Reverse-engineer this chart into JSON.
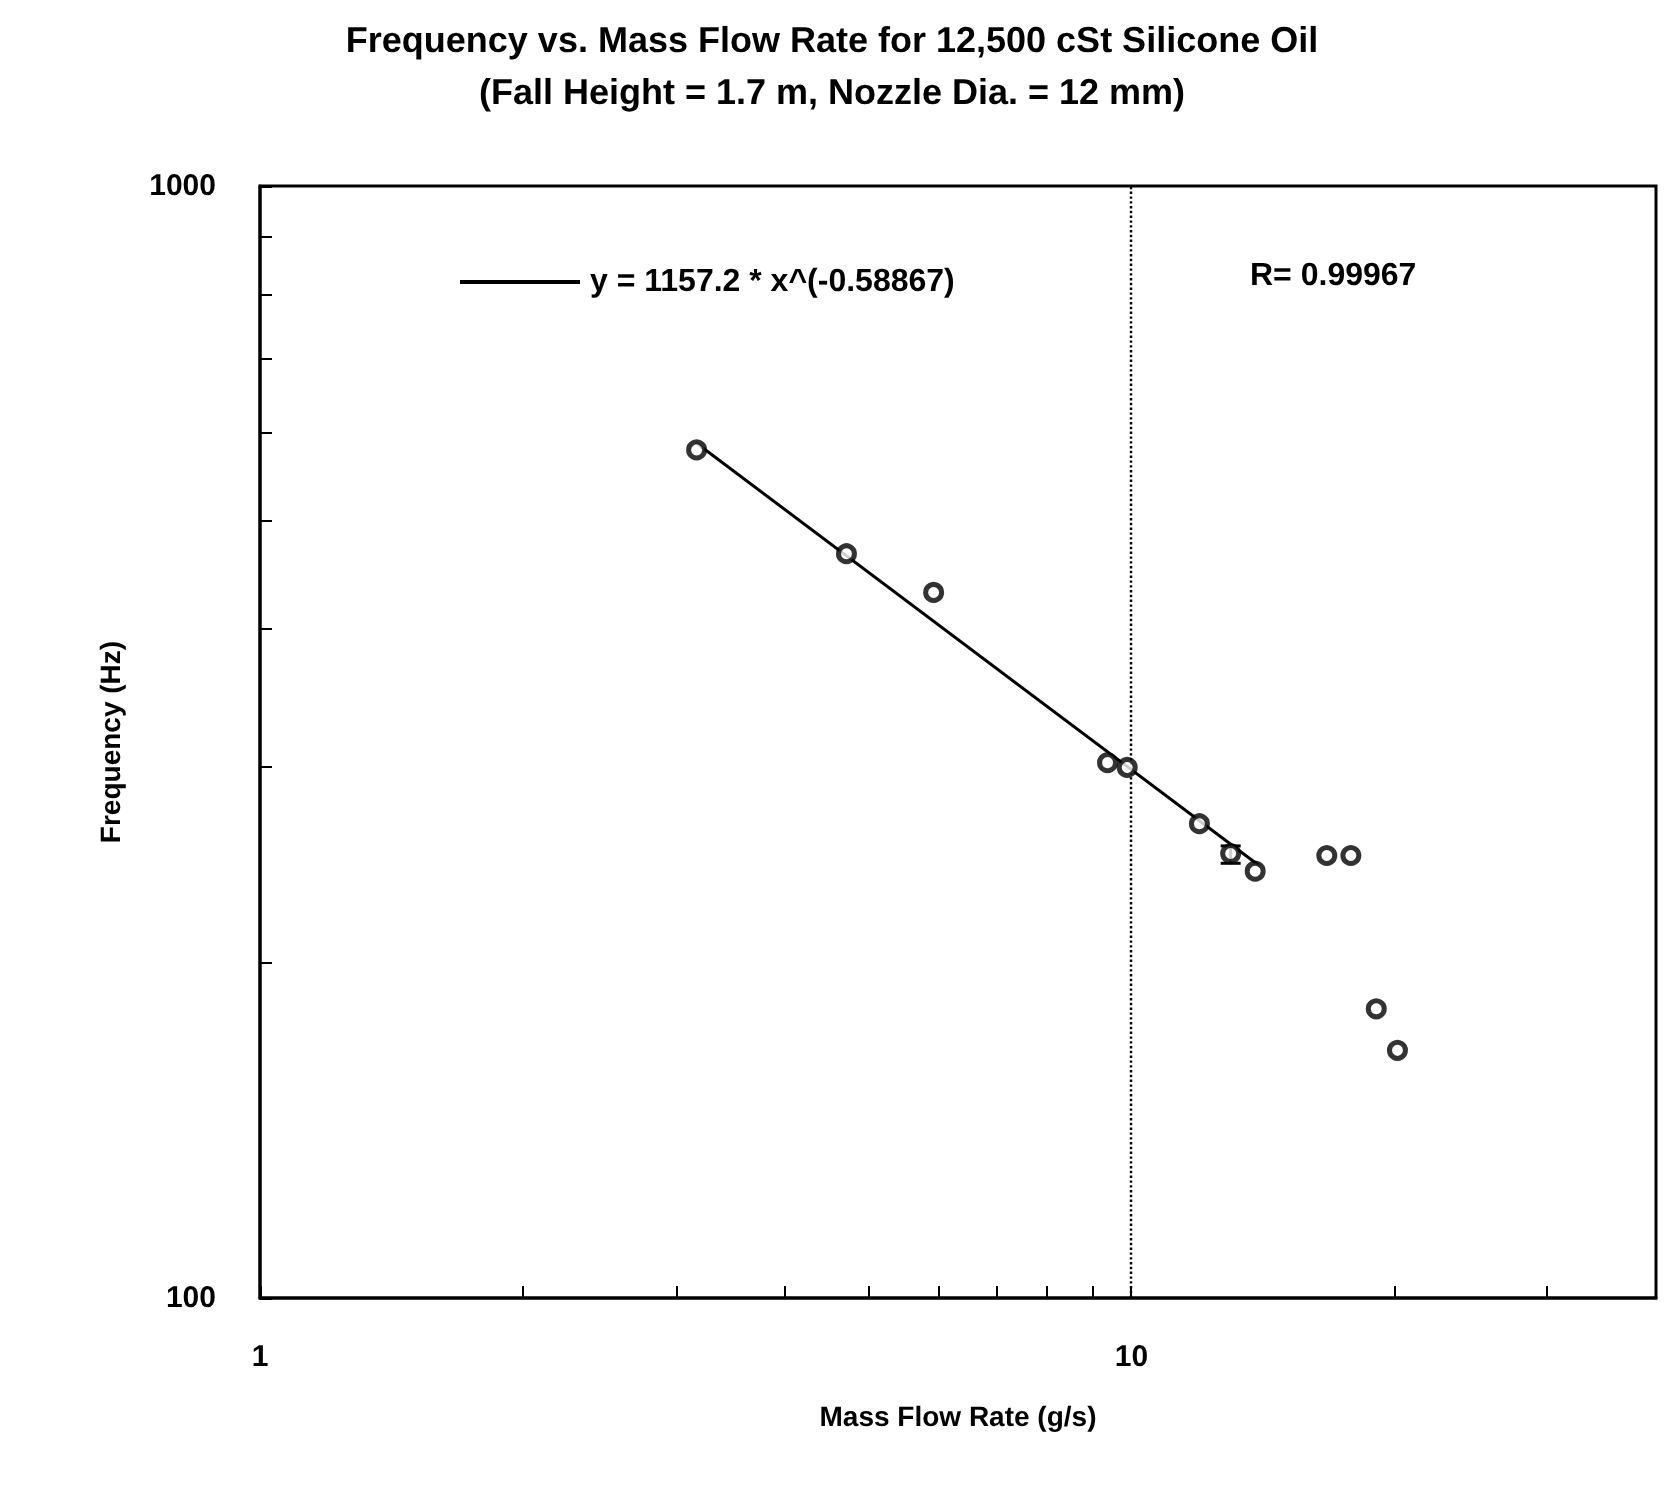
{
  "chart_data": {
    "type": "scatter",
    "title": "Frequency vs. Mass Flow Rate for 12,500 cSt Silicone Oil",
    "subtitle": "(Fall Height = 1.7 m, Nozzle Dia. = 12 mm)",
    "xlabel": "Mass Flow Rate (g/s)",
    "ylabel": "Frequency (Hz)",
    "log": "xy",
    "grid": false,
    "legend": "top",
    "marker": "circle",
    "xlim": [
      1,
      40
    ],
    "ylim": [
      100,
      1000
    ],
    "xticks": [
      1,
      {
        "value": 2,
        "label": null
      },
      {
        "value": 3,
        "label": null
      },
      {
        "value": 4,
        "label": null
      },
      {
        "value": 5,
        "label": null
      },
      {
        "value": 6,
        "label": null
      },
      {
        "value": 7,
        "label": null
      },
      {
        "value": 8,
        "label": null
      },
      {
        "value": 9,
        "label": null
      },
      10,
      {
        "value": 20,
        "label": null
      },
      {
        "value": 30,
        "label": null
      }
    ],
    "yticks": [
      100,
      {
        "value": 200,
        "label": null
      },
      {
        "value": 300,
        "label": null
      },
      {
        "value": 400,
        "label": null
      },
      {
        "value": 500,
        "label": null
      },
      {
        "value": 600,
        "label": null
      },
      {
        "value": 700,
        "label": null
      },
      {
        "value": 800,
        "label": null
      },
      {
        "value": 900,
        "label": null
      },
      1000
    ],
    "annotations": [
      "R= 0.99967"
    ],
    "ref_lines": [
      {
        "axis": "x",
        "value": 10,
        "color": "#000000",
        "line_style": "dotted"
      }
    ],
    "series": [
      {
        "color": "#000000",
        "x": [
          3.17,
          4.71,
          5.93,
          9.39,
          9.89,
          11.97,
          13.0,
          13.87,
          16.76,
          17.86,
          19.1,
          20.2
        ],
        "values": [
          579,
          467,
          431,
          303,
          300,
          267,
          251,
          242,
          250,
          250,
          182,
          167
        ],
        "errors": [
          null,
          null,
          null,
          null,
          null,
          null,
          [
            246,
            255
          ],
          null,
          null,
          null,
          null,
          null
        ]
      },
      {
        "type": "line",
        "name": "y = 1157.2 * x^(-0.58867)",
        "color": "#000000",
        "line_style": "solid",
        "marker": "none",
        "x": [
          3.17,
          14
        ],
        "values": [
          587,
          245
        ]
      }
    ]
  }
}
